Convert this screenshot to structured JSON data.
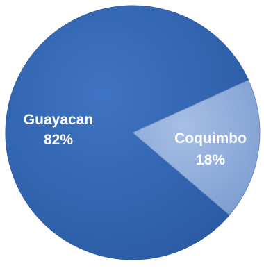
{
  "chart_data": {
    "type": "pie",
    "title": "",
    "slices": [
      {
        "category": "Guayacan",
        "percent_label": "82%",
        "value": 82,
        "color": "#3567b3"
      },
      {
        "category": "Coquimbo",
        "percent_label": "18%",
        "value": 18,
        "color": "#8da9d8"
      }
    ],
    "legend": "none",
    "data_labels": "inside"
  }
}
